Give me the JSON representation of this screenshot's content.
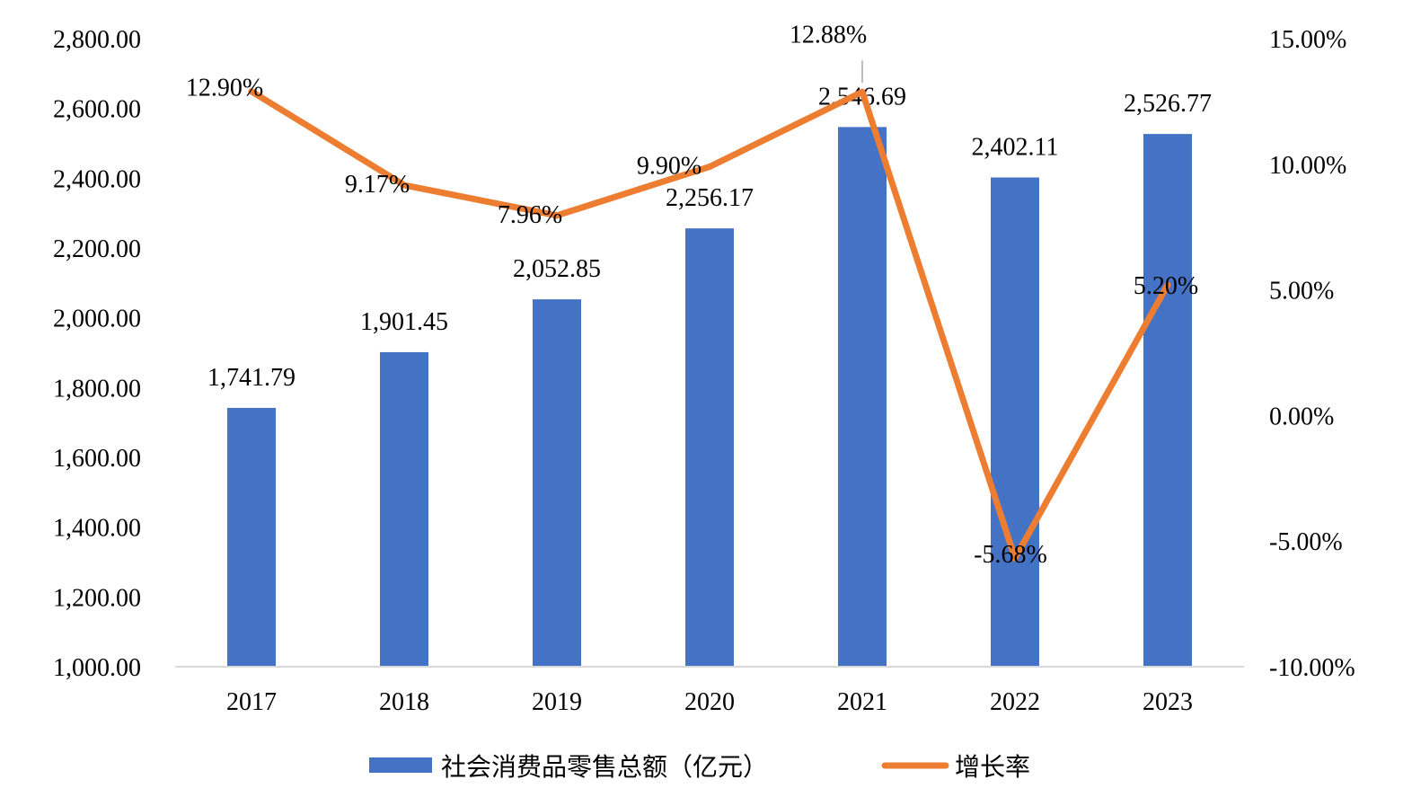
{
  "chart_data": {
    "type": "bar",
    "categories": [
      "2017",
      "2018",
      "2019",
      "2020",
      "2021",
      "2022",
      "2023"
    ],
    "series": [
      {
        "name": "社会消费品零售总额（亿元）",
        "type": "bar",
        "axis": "left",
        "color": "#4472C4",
        "values": [
          1741.79,
          1901.45,
          2052.85,
          2256.17,
          2546.69,
          2402.11,
          2526.77
        ],
        "labels": [
          "1,741.79",
          "1,901.45",
          "2,052.85",
          "2,256.17",
          "2,546.69",
          "2,402.11",
          "2,526.77"
        ]
      },
      {
        "name": "增长率",
        "type": "line",
        "axis": "right",
        "color": "#ED7D31",
        "values": [
          12.9,
          9.17,
          7.96,
          9.9,
          12.88,
          -5.68,
          5.2
        ],
        "labels": [
          "12.90%",
          "9.17%",
          "7.96%",
          "9.90%",
          "12.88%",
          "-5.68%",
          "5.20%"
        ]
      }
    ],
    "y_left": {
      "ylim": [
        1000,
        2800
      ],
      "ticks": [
        1000,
        1200,
        1400,
        1600,
        1800,
        2000,
        2200,
        2400,
        2600,
        2800
      ],
      "tick_labels": [
        "1,000.00",
        "1,200.00",
        "1,400.00",
        "1,600.00",
        "1,800.00",
        "2,000.00",
        "2,200.00",
        "2,400.00",
        "2,600.00",
        "2,800.00"
      ]
    },
    "y_right": {
      "ylim": [
        -10,
        15
      ],
      "ticks": [
        -10,
        -5,
        0,
        5,
        10,
        15
      ],
      "tick_labels": [
        "-10.00%",
        "-5.00%",
        "0.00%",
        "5.00%",
        "10.00%",
        "15.00%"
      ]
    },
    "grid": false,
    "legend": "bottom"
  }
}
